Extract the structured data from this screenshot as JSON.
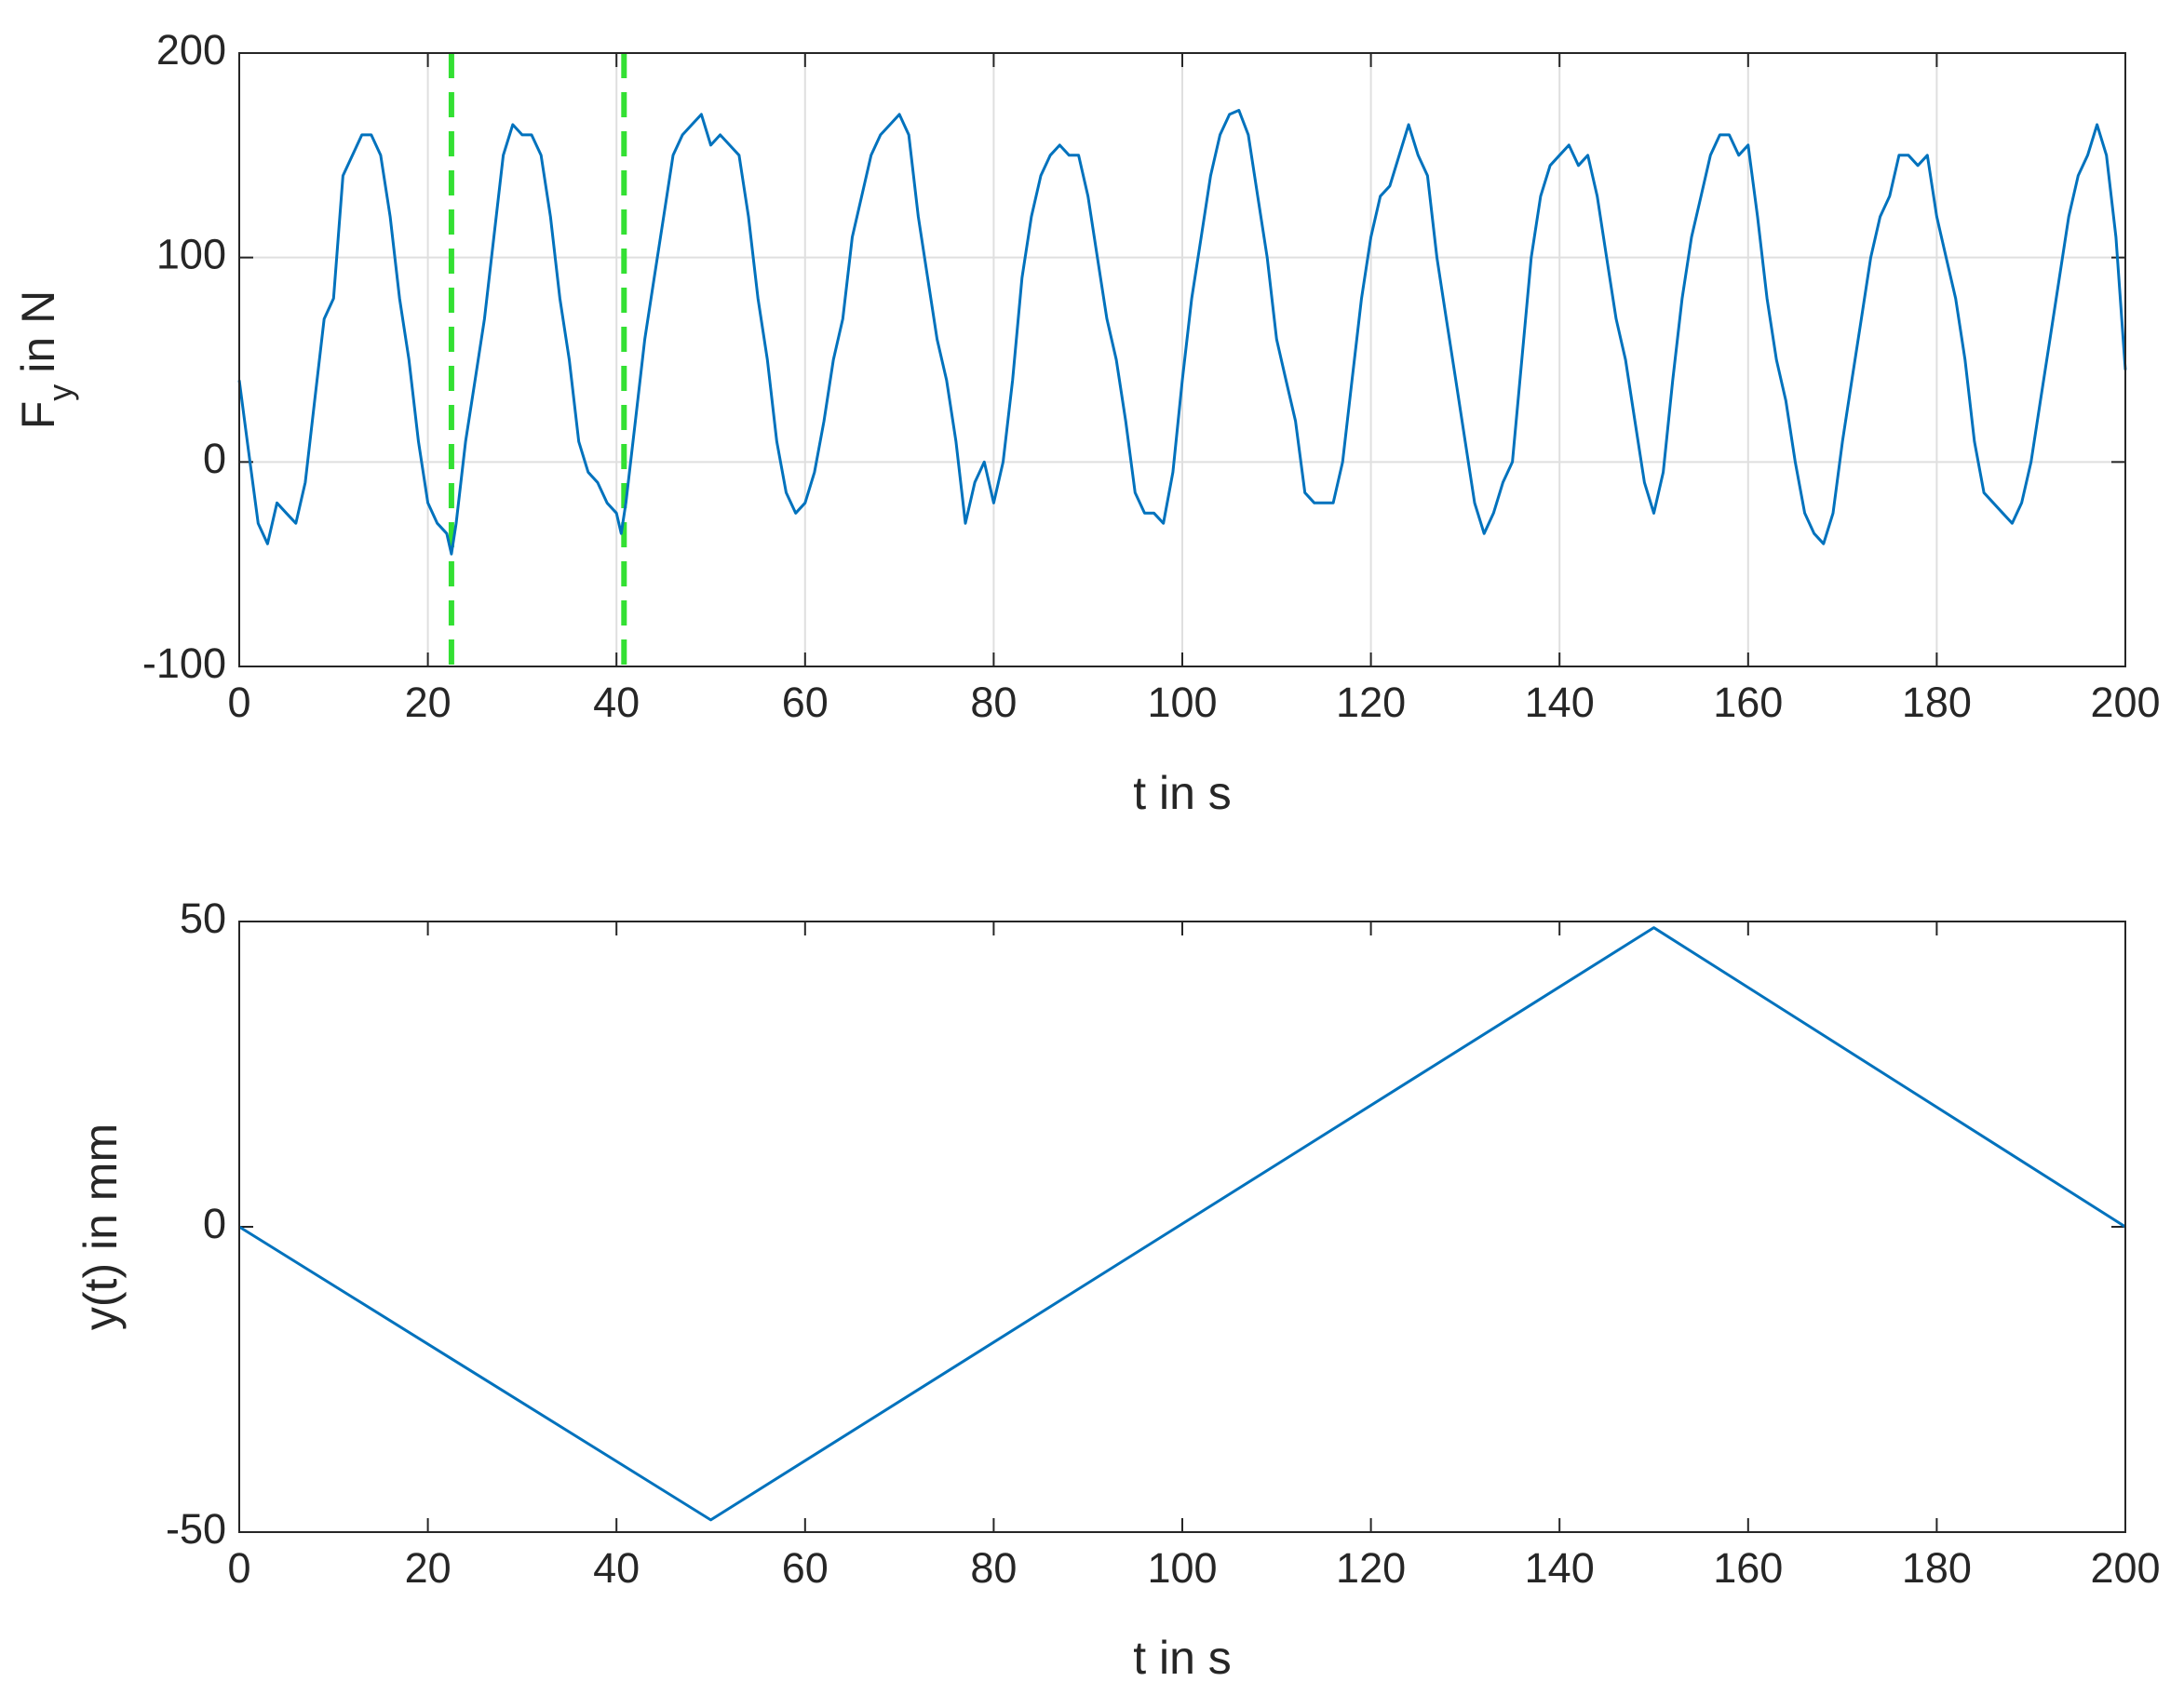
{
  "chart_data": [
    {
      "type": "line",
      "ylabel": [
        "F",
        "y",
        "in N"
      ],
      "xlabel": "t in s",
      "color": "#0072bd",
      "x": [
        0,
        1,
        2,
        3,
        4,
        5,
        6,
        7,
        8,
        9,
        10,
        11,
        12,
        13,
        14,
        15,
        16,
        17,
        18,
        19,
        20,
        21,
        22,
        22.5,
        23,
        24,
        25,
        26,
        27,
        28,
        29,
        30,
        31,
        32,
        33,
        34,
        35,
        36,
        37,
        38,
        39,
        40,
        40.5,
        41,
        42,
        43,
        44,
        45,
        46,
        47,
        48,
        49,
        50,
        51,
        52,
        53,
        54,
        55,
        56,
        57,
        58,
        59,
        60,
        61,
        62,
        63,
        64,
        65,
        66,
        67,
        68,
        69,
        70,
        71,
        72,
        73,
        74,
        75,
        76,
        77,
        78,
        79,
        80,
        81,
        82,
        83,
        84,
        85,
        86,
        87,
        88,
        89,
        90,
        91,
        92,
        93,
        94,
        95,
        96,
        97,
        98,
        99,
        100,
        101,
        102,
        103,
        104,
        105,
        106,
        107,
        108,
        109,
        110,
        111,
        112,
        113,
        114,
        115,
        116,
        117,
        118,
        119,
        120,
        121,
        122,
        123,
        124,
        125,
        126,
        127,
        128,
        129,
        130,
        131,
        132,
        133,
        134,
        135,
        136,
        137,
        138,
        139,
        140,
        141,
        142,
        143,
        144,
        145,
        146,
        147,
        148,
        149,
        150,
        151,
        152,
        153,
        154,
        155,
        156,
        157,
        158,
        159,
        160,
        161,
        162,
        163,
        164,
        165,
        166,
        167,
        168,
        169,
        170,
        171,
        172,
        173,
        174,
        175,
        176,
        177,
        178,
        179,
        180,
        181,
        182,
        183,
        184,
        185,
        186,
        187,
        188,
        189,
        190,
        191,
        192,
        193,
        194,
        195,
        196,
        197,
        198,
        199,
        200
      ],
      "values": [
        40,
        5,
        -30,
        -40,
        -20,
        -25,
        -30,
        -10,
        30,
        70,
        80,
        140,
        150,
        160,
        160,
        150,
        120,
        80,
        50,
        10,
        -20,
        -30,
        -35,
        -45,
        -30,
        10,
        40,
        70,
        110,
        150,
        165,
        160,
        160,
        150,
        120,
        80,
        50,
        10,
        -5,
        -10,
        -20,
        -25,
        -35,
        -20,
        20,
        60,
        90,
        120,
        150,
        160,
        165,
        170,
        155,
        160,
        155,
        150,
        120,
        80,
        50,
        10,
        -15,
        -25,
        -20,
        -5,
        20,
        50,
        70,
        110,
        130,
        150,
        160,
        165,
        170,
        160,
        120,
        90,
        60,
        40,
        10,
        -30,
        -10,
        0,
        -20,
        0,
        40,
        90,
        120,
        140,
        150,
        155,
        150,
        150,
        130,
        100,
        70,
        50,
        20,
        -15,
        -25,
        -25,
        -30,
        -5,
        40,
        80,
        110,
        140,
        160,
        170,
        172,
        160,
        130,
        100,
        60,
        40,
        20,
        -15,
        -20,
        -20,
        -20,
        0,
        40,
        80,
        110,
        130,
        135,
        150,
        165,
        150,
        140,
        100,
        70,
        40,
        10,
        -20,
        -35,
        -25,
        -10,
        0,
        50,
        100,
        130,
        145,
        150,
        155,
        145,
        150,
        130,
        100,
        70,
        50,
        20,
        -10,
        -25,
        -5,
        40,
        80,
        110,
        130,
        150,
        160,
        160,
        150,
        155,
        120,
        80,
        50,
        30,
        0,
        -25,
        -35,
        -40,
        -25,
        10,
        40,
        70,
        100,
        120,
        130,
        150,
        150,
        145,
        150,
        120,
        100,
        80,
        50,
        10,
        -15,
        -20,
        -25,
        -30,
        -20,
        0,
        30,
        60,
        90,
        120,
        140,
        150,
        165,
        150,
        110,
        45
      ],
      "vlines": [
        22.5,
        40.8
      ],
      "vline_color": "#33e033",
      "xlim": [
        0,
        200
      ],
      "xticks": [
        0,
        20,
        40,
        60,
        80,
        100,
        120,
        140,
        160,
        180,
        200
      ],
      "ylim": [
        -100,
        200
      ],
      "yticks": [
        -100,
        0,
        100,
        200
      ],
      "grid": true
    },
    {
      "type": "line",
      "ylabel": [
        "y(t) in mm"
      ],
      "xlabel": "t in s",
      "color": "#0072bd",
      "x": [
        0,
        50,
        150,
        200
      ],
      "values": [
        0,
        -48,
        49,
        0
      ],
      "xlim": [
        0,
        200
      ],
      "xticks": [
        0,
        20,
        40,
        60,
        80,
        100,
        120,
        140,
        160,
        180,
        200
      ],
      "ylim": [
        -50,
        50
      ],
      "yticks": [
        -50,
        0,
        50
      ],
      "grid": false
    }
  ]
}
